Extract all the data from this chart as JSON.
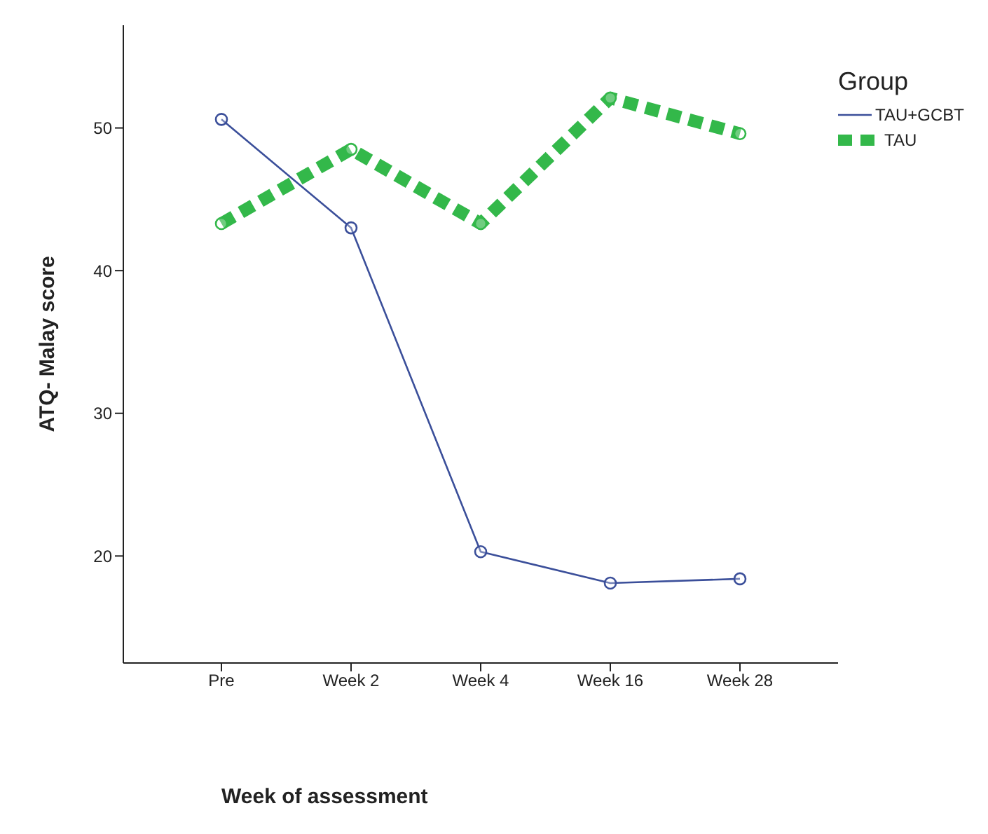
{
  "chart_data": {
    "type": "line",
    "xlabel": "Week of assessment",
    "ylabel": "ATQ- Malay score",
    "legend_title": "Group",
    "categories": [
      "Pre",
      "Week 2",
      "Week 4",
      "Week 16",
      "Week 28"
    ],
    "series": [
      {
        "name": "TAU+GCBT",
        "color": "#3b4f9a",
        "values": [
          50.6,
          43.0,
          20.3,
          18.1,
          18.4
        ],
        "marker": "circle",
        "line_style": "solid"
      },
      {
        "name": "TAU",
        "color": "#33b84a",
        "values": [
          43.3,
          48.5,
          43.3,
          52.1,
          49.6
        ],
        "marker": "circle",
        "line_style": "dashed"
      }
    ],
    "ylim": [
      12.5,
      57.2
    ],
    "yticks": [
      20,
      30,
      40,
      50
    ],
    "grid": false,
    "legend": "top right"
  }
}
